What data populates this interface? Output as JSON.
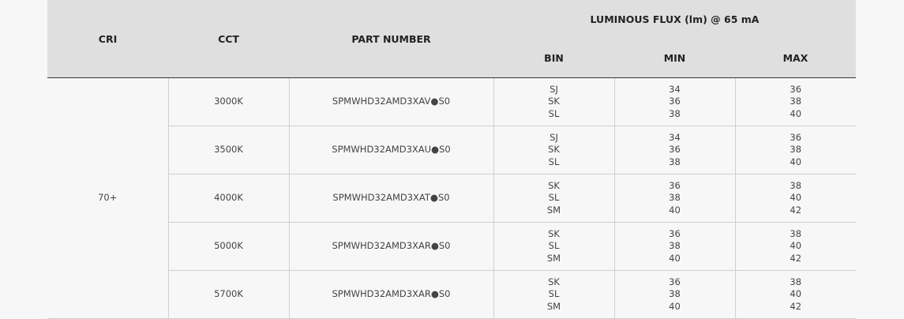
{
  "headers": {
    "cri": "CRI",
    "cct": "CCT",
    "part_number": "PART NUMBER",
    "flux": "LUMINOUS FLUX (lm) @ 65 mA",
    "bin": "BIN",
    "min": "MIN",
    "max": "MAX"
  },
  "cri": "70+",
  "rows": [
    {
      "cct": "3000K",
      "part": "SPMWHD32AMD3XAV●S0",
      "bins": [
        "SJ",
        "SK",
        "SL"
      ],
      "min": [
        "34",
        "36",
        "38"
      ],
      "max": [
        "36",
        "38",
        "40"
      ]
    },
    {
      "cct": "3500K",
      "part": "SPMWHD32AMD3XAU●S0",
      "bins": [
        "SJ",
        "SK",
        "SL"
      ],
      "min": [
        "34",
        "36",
        "38"
      ],
      "max": [
        "36",
        "38",
        "40"
      ]
    },
    {
      "cct": "4000K",
      "part": "SPMWHD32AMD3XAT●S0",
      "bins": [
        "SK",
        "SL",
        "SM"
      ],
      "min": [
        "36",
        "38",
        "40"
      ],
      "max": [
        "38",
        "40",
        "42"
      ]
    },
    {
      "cct": "5000K",
      "part": "SPMWHD32AMD3XAR●S0",
      "bins": [
        "SK",
        "SL",
        "SM"
      ],
      "min": [
        "36",
        "38",
        "40"
      ],
      "max": [
        "38",
        "40",
        "42"
      ]
    },
    {
      "cct": "5700K",
      "part": "SPMWHD32AMD3XAR●S0",
      "bins": [
        "SK",
        "SL",
        "SM"
      ],
      "min": [
        "36",
        "38",
        "40"
      ],
      "max": [
        "38",
        "40",
        "42"
      ]
    }
  ]
}
